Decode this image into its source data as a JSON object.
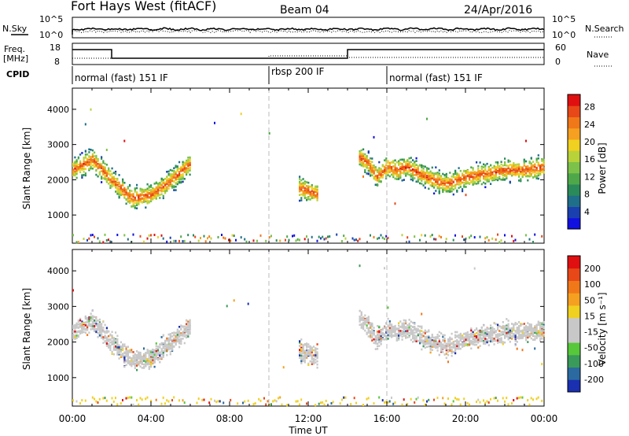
{
  "header": {
    "title": "Fort Hays West (fitACF)",
    "beam": "Beam 04",
    "date": "24/Apr/2016"
  },
  "noise_panel": {
    "left_label": "N.Sky",
    "right_label": "N.Search",
    "left_ticks": [
      "10^5",
      "10^0"
    ],
    "right_ticks": [
      "10^5",
      "10^0"
    ]
  },
  "freq_panel": {
    "left_label_line1": "Freq.",
    "left_label_line2": "[MHz]",
    "right_label": "Nave",
    "left_ticks": [
      "18",
      "8"
    ],
    "right_ticks": [
      "60",
      "0"
    ]
  },
  "cpid": {
    "label": "CPID",
    "segments": [
      {
        "name": "normal (fast) 151 IF",
        "start_hour": 0,
        "end_hour": 10
      },
      {
        "name": "rbsp 200 IF",
        "start_hour": 10,
        "end_hour": 16
      },
      {
        "name": "normal (fast) 151 IF",
        "start_hour": 16,
        "end_hour": 24
      }
    ]
  },
  "chart_data": [
    {
      "type": "heatmap",
      "title": "Power",
      "ylabel": "Slant Range [km]",
      "colorbar_label": "Power [dB]",
      "colorbar_ticks": [
        "4",
        "8",
        "12",
        "16",
        "20",
        "24",
        "28"
      ],
      "colorbar_colors": [
        "#1010e0",
        "#1a40b0",
        "#1f6e8a",
        "#2a8a5a",
        "#4ea84a",
        "#7cc24a",
        "#b8d23a",
        "#f0d020",
        "#f5a020",
        "#f07818",
        "#e84818",
        "#e01010"
      ],
      "ylim": [
        200,
        4600
      ],
      "yticks": [
        "1000",
        "2000",
        "3000",
        "4000"
      ],
      "xlim": [
        0,
        24
      ],
      "backscatter_bands": [
        {
          "t": [
            0.0,
            1.0,
            2.0,
            3.0,
            4.0,
            5.0,
            6.0
          ],
          "range": [
            2300,
            2600,
            2000,
            1500,
            1600,
            2000,
            2500
          ]
        },
        {
          "t": [
            11.5,
            12.0,
            12.5
          ],
          "range": [
            1800,
            1700,
            1600
          ]
        },
        {
          "t": [
            14.5,
            15.0,
            15.5,
            16.0,
            16.5,
            17.0,
            18.0,
            19.0,
            20.0,
            21.0,
            22.0,
            23.0,
            24.0
          ],
          "range": [
            2700,
            2500,
            2100,
            2400,
            2300,
            2400,
            2100,
            1900,
            2100,
            2200,
            2300,
            2300,
            2400
          ]
        }
      ]
    },
    {
      "type": "heatmap",
      "title": "Velocity",
      "ylabel": "Slant Range [km]",
      "colorbar_label": "Velocity [m s⁻¹]",
      "colorbar_ticks": [
        "200",
        "100",
        "50",
        "15",
        "-15",
        "-50",
        "-100",
        "-200"
      ],
      "colorbar_colors": [
        "#1a30b0",
        "#2a6aa0",
        "#3a9a5a",
        "#56c83a",
        "#c8c8c8",
        "#c8c8c8",
        "#f0d020",
        "#f5a020",
        "#f07818",
        "#e84818",
        "#e01010"
      ],
      "ylim": [
        200,
        4600
      ],
      "yticks": [
        "1000",
        "2000",
        "3000",
        "4000"
      ],
      "xlim": [
        0,
        24
      ]
    }
  ],
  "x_axis": {
    "label": "Time UT",
    "ticks": [
      "00:00",
      "04:00",
      "08:00",
      "12:00",
      "16:00",
      "20:00",
      "00:00"
    ]
  }
}
